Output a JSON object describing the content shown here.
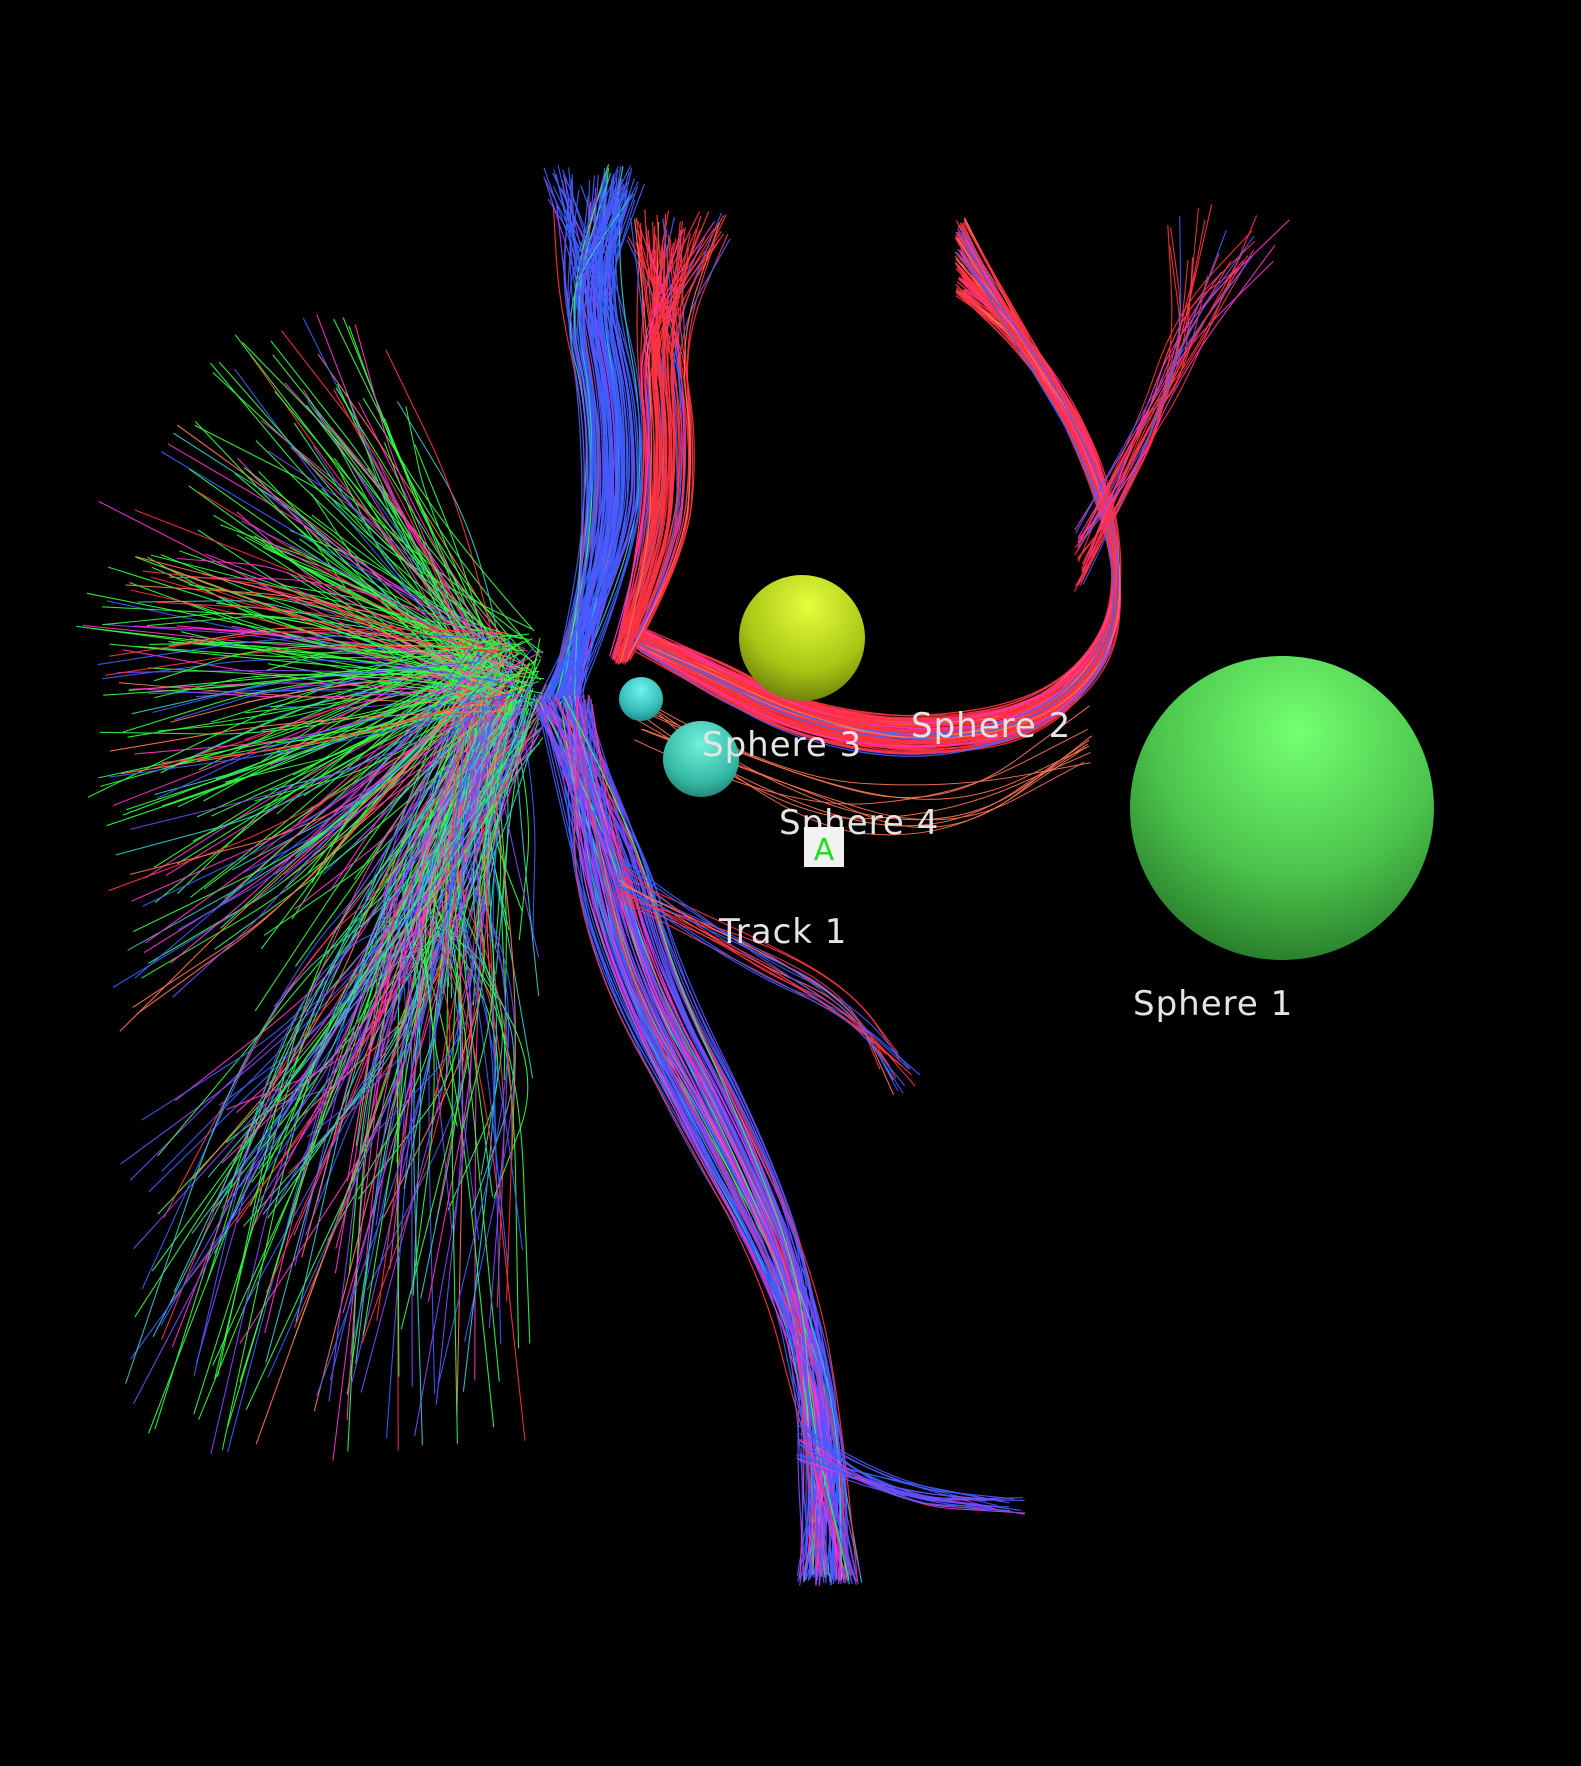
{
  "scene": {
    "background": "#000000",
    "bundle_colors": [
      "#3f5fff",
      "#ff3344",
      "#33ff44",
      "#ff33cc",
      "#33cccc",
      "#8844ff",
      "#ff7755"
    ],
    "spheres": [
      {
        "id": "sphere-1",
        "label": "Sphere 1",
        "color": "#5ee860"
      },
      {
        "id": "sphere-2",
        "label": "Sphere 2",
        "color": "#c6e41a"
      },
      {
        "id": "sphere-3",
        "label": "Sphere 3",
        "color": "#3fd6d2"
      },
      {
        "id": "sphere-4",
        "label": "Sphere 4",
        "color": "#3ed8bf"
      }
    ],
    "track_label": "Track 1",
    "marker": {
      "text": "A",
      "text_color": "#22dd22",
      "box_color": "#f2f2f2"
    }
  }
}
